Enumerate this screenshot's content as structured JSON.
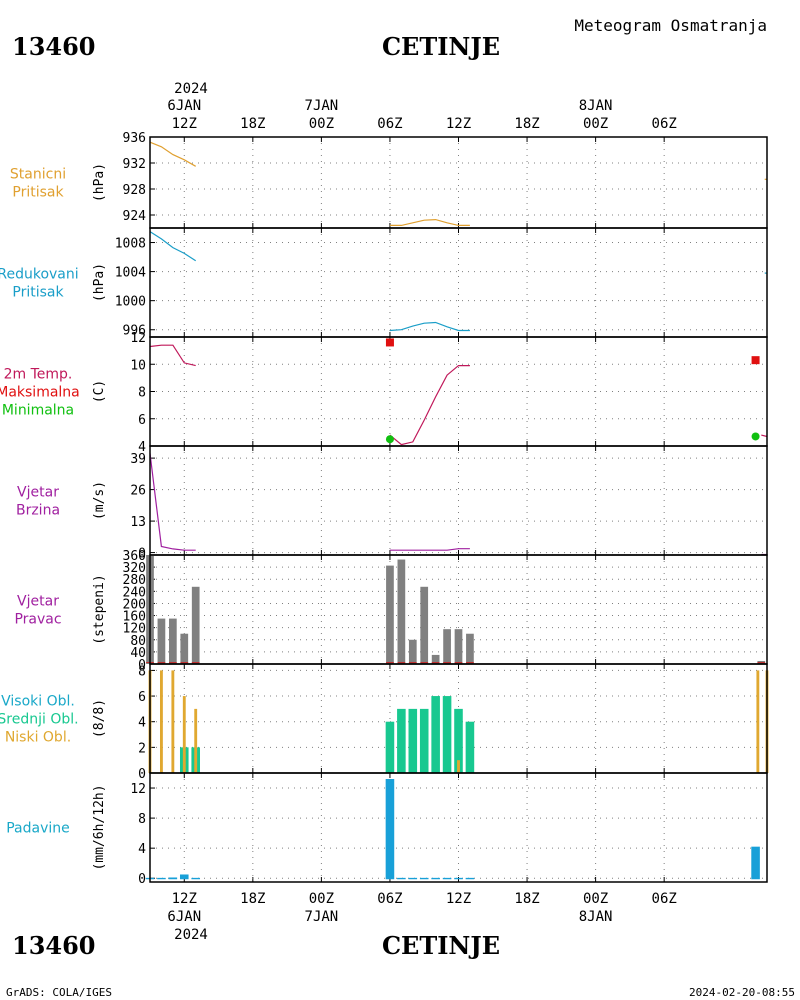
{
  "header": {
    "station_id": "13460",
    "station_name": "CETINJE",
    "meteogram_title": "Meteogram Osmatranja"
  },
  "footer": {
    "station_id": "13460",
    "station_name": "CETINJE",
    "credit": "GrADS: COLA/IGES",
    "generated": "2024-02-20-08:55"
  },
  "time_axis": {
    "hours": [
      9,
      63
    ],
    "top_year": "2024",
    "bottom_year": "2024",
    "ticks": [
      {
        "h": 12,
        "label": "12Z",
        "date": "6JAN"
      },
      {
        "h": 18,
        "label": "18Z",
        "date": ""
      },
      {
        "h": 24,
        "label": "00Z",
        "date": "7JAN"
      },
      {
        "h": 30,
        "label": "06Z",
        "date": ""
      },
      {
        "h": 36,
        "label": "12Z",
        "date": ""
      },
      {
        "h": 42,
        "label": "18Z",
        "date": ""
      },
      {
        "h": 48,
        "label": "00Z",
        "date": "8JAN"
      },
      {
        "h": 54,
        "label": "06Z",
        "date": ""
      }
    ]
  },
  "colors": {
    "station_pressure": "#e0a030",
    "reduced_pressure": "#1a9ec8",
    "temp_line": "#c0185a",
    "temp_max": "#e01010",
    "temp_min": "#10c010",
    "wind": "#a020a0",
    "bars_gray": "#808080",
    "bars_red": "#c03030",
    "high_cloud": "#19a8c8",
    "mid_cloud": "#18c890",
    "low_cloud": "#e0a830",
    "precip": "#18a0d8"
  },
  "panels": [
    {
      "key": "stanicni",
      "labels": [
        "Stanicni",
        "Pritisak"
      ],
      "label_colors": [
        "#e0a030",
        "#e0a030"
      ],
      "unit": "(hPa)",
      "yticks": [
        924,
        928,
        932,
        936
      ]
    },
    {
      "key": "redukovani",
      "labels": [
        "Redukovani",
        "Pritisak"
      ],
      "label_colors": [
        "#1a9ec8",
        "#1a9ec8"
      ],
      "unit": "(hPa)",
      "yticks": [
        996,
        1000,
        1004,
        1008
      ]
    },
    {
      "key": "temp",
      "labels": [
        "2m Temp.",
        "Maksimalna",
        "Minimalna"
      ],
      "label_colors": [
        "#c0185a",
        "#e01010",
        "#10c010"
      ],
      "unit": "(C)",
      "yticks": [
        4,
        6,
        8,
        10,
        12
      ]
    },
    {
      "key": "brzina",
      "labels": [
        "Vjetar",
        "Brzina"
      ],
      "label_colors": [
        "#a020a0",
        "#a020a0"
      ],
      "unit": "(m/s)",
      "yticks": [
        0,
        13,
        26,
        39
      ]
    },
    {
      "key": "pravac",
      "labels": [
        "Vjetar",
        "Pravac"
      ],
      "label_colors": [
        "#a020a0",
        "#a020a0"
      ],
      "unit": "(stepeni)",
      "yticks": [
        0,
        40,
        80,
        120,
        160,
        200,
        240,
        280,
        320,
        360
      ]
    },
    {
      "key": "oblaci",
      "labels": [
        "Visoki Obl.",
        "Srednji Obl.",
        "Niski Obl."
      ],
      "label_colors": [
        "#19a8c8",
        "#18c890",
        "#e0a830"
      ],
      "unit": "(8/8)",
      "yticks": [
        0,
        2,
        4,
        6,
        8
      ]
    },
    {
      "key": "padavine",
      "labels": [
        "Padavine"
      ],
      "label_colors": [
        "#19a8c8"
      ],
      "unit": "(mm/6h/12h)",
      "yticks": [
        0,
        4,
        8,
        12
      ]
    }
  ],
  "chart_data": [
    {
      "type": "line",
      "title": "Stanicni Pritisak",
      "ylabel": "(hPa)",
      "ylim": [
        922,
        936
      ],
      "segments": [
        {
          "x": [
            9,
            10,
            11,
            12,
            13
          ],
          "y": [
            935.2,
            934.5,
            933.3,
            932.5,
            931.5
          ]
        },
        {
          "x": [
            30,
            31,
            32,
            33,
            34,
            35,
            36,
            37
          ],
          "y": [
            922.4,
            922.4,
            922.8,
            923.2,
            923.3,
            922.8,
            922.4,
            922.4
          ]
        },
        {
          "x": [
            62.8,
            63
          ],
          "y": [
            929.5,
            929.5
          ]
        }
      ]
    },
    {
      "type": "line",
      "title": "Redukovani Pritisak",
      "ylabel": "(hPa)",
      "ylim": [
        995,
        1010
      ],
      "segments": [
        {
          "x": [
            9,
            10,
            11,
            12,
            13
          ],
          "y": [
            1009.5,
            1008.5,
            1007.3,
            1006.5,
            1005.5
          ]
        },
        {
          "x": [
            30,
            31,
            32,
            33,
            34,
            35,
            36,
            37
          ],
          "y": [
            995.9,
            996.0,
            996.5,
            996.9,
            997.0,
            996.4,
            995.9,
            995.9
          ]
        },
        {
          "x": [
            62.8,
            63
          ],
          "y": [
            1003.8,
            1003.8
          ]
        }
      ]
    },
    {
      "type": "line",
      "title": "2m Temp.",
      "ylabel": "(C)",
      "ylim": [
        4,
        12
      ],
      "segments": [
        {
          "x": [
            9,
            10,
            11,
            12,
            13
          ],
          "y": [
            11.3,
            11.4,
            11.4,
            10.1,
            9.9
          ]
        },
        {
          "x": [
            30,
            31,
            32,
            33,
            34,
            35,
            36,
            37
          ],
          "y": [
            4.8,
            4.1,
            4.3,
            5.9,
            7.6,
            9.2,
            9.9,
            9.9
          ]
        },
        {
          "x": [
            62.5,
            63
          ],
          "y": [
            4.8,
            4.7
          ]
        }
      ],
      "max_points": [
        {
          "x": 30,
          "y": 11.6
        },
        {
          "x": 62,
          "y": 10.3
        }
      ],
      "min_points": [
        {
          "x": 30,
          "y": 4.5
        },
        {
          "x": 62,
          "y": 4.7
        }
      ]
    },
    {
      "type": "line",
      "title": "Vjetar Brzina",
      "ylabel": "(m/s)",
      "ylim": [
        -1,
        44
      ],
      "segments": [
        {
          "x": [
            9,
            10,
            11,
            12,
            13
          ],
          "y": [
            41,
            2.5,
            1.5,
            1.0,
            1.0
          ]
        },
        {
          "x": [
            30,
            31,
            32,
            33,
            34,
            35,
            36,
            37
          ],
          "y": [
            1.0,
            1.0,
            1.0,
            1.0,
            1.0,
            1.0,
            1.6,
            1.6
          ]
        },
        {
          "x": [
            62.5,
            63
          ],
          "y": [
            -0.8,
            -0.8
          ]
        }
      ]
    },
    {
      "type": "bar",
      "title": "Vjetar Pravac",
      "ylabel": "(stepeni)",
      "ylim": [
        0,
        360
      ],
      "x": [
        9,
        10,
        11,
        12,
        13,
        30,
        31,
        32,
        33,
        34,
        35,
        36,
        37,
        62.5
      ],
      "values": [
        370,
        150,
        150,
        100,
        255,
        325,
        345,
        80,
        255,
        30,
        115,
        115,
        100,
        10
      ],
      "base_line_values": [
        5,
        5,
        5,
        5,
        5,
        5,
        5,
        5,
        5,
        5,
        5,
        5,
        5,
        5
      ]
    },
    {
      "type": "bar",
      "title": "Oblaci",
      "ylabel": "(8/8)",
      "ylim": [
        0,
        8.5
      ],
      "x": [
        9,
        10,
        11,
        12,
        13,
        30,
        31,
        32,
        33,
        34,
        35,
        36,
        37,
        62.2,
        63
      ],
      "series": [
        {
          "name": "Visoki Obl.",
          "values": [
            0,
            0,
            0,
            0,
            0,
            0,
            0,
            0,
            0,
            0,
            0,
            0,
            0,
            0,
            0
          ]
        },
        {
          "name": "Srednji Obl.",
          "values": [
            0,
            0,
            0,
            2,
            2,
            4,
            5,
            5,
            5,
            6,
            6,
            5,
            4,
            0,
            0
          ]
        },
        {
          "name": "Niski Obl.",
          "values": [
            8,
            8,
            8,
            6,
            5,
            0,
            0,
            0,
            0,
            0,
            0,
            1,
            0,
            8,
            8
          ]
        }
      ]
    },
    {
      "type": "bar",
      "title": "Padavine",
      "ylabel": "(mm/6h/12h)",
      "ylim": [
        -0.5,
        14
      ],
      "x": [
        9,
        10,
        11,
        12,
        13,
        30,
        31,
        32,
        33,
        34,
        35,
        36,
        37,
        62
      ],
      "values": [
        0.05,
        0.05,
        0.1,
        0.5,
        0.05,
        13.2,
        0.05,
        0.05,
        0.05,
        0.05,
        0.05,
        0.05,
        0.05,
        4.2
      ]
    }
  ]
}
